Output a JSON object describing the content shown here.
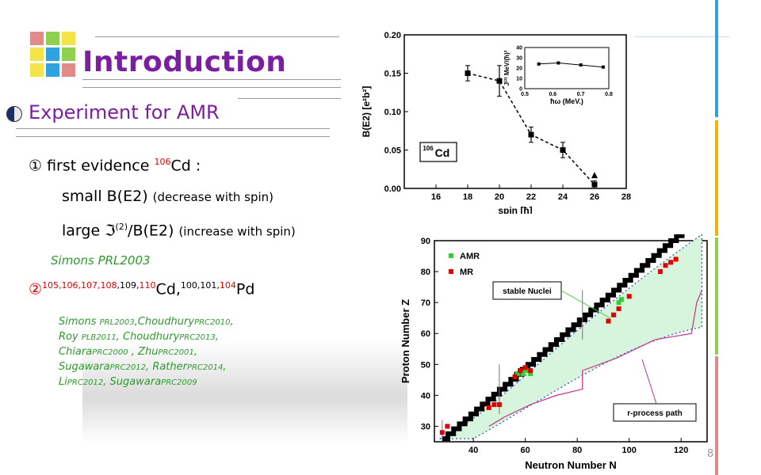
{
  "slide": {
    "title": "Introduction",
    "subtitle": "Experiment for AMR",
    "page_number": "8",
    "item1": {
      "marker": "①",
      "text_a": "first evidence",
      "mass": "106",
      "element": "Cd",
      "colon": " :"
    },
    "item1_line2": {
      "main": "small B(E2) ",
      "paren": "(decrease with spin)"
    },
    "item1_line3": {
      "a": "large ",
      "symbol": "ℑ",
      "sup": "(2)",
      "b": "/B(E2) ",
      "paren": "(increase with spin)"
    },
    "ref1": "Simons PRL2003",
    "item2": {
      "marker": "②",
      "cd_masses": [
        "105",
        ",",
        "106",
        ",",
        "107",
        ",",
        "108",
        ",",
        "109",
        ",",
        "110"
      ],
      "cd": "Cd,",
      "pd_masses": [
        "100",
        ",",
        "101",
        ",",
        "104"
      ],
      "pd": "Pd"
    },
    "refs": [
      {
        "name": "Simons ",
        "ref": "PRL2003",
        "sep": ",",
        "name2": "Choudhury",
        "ref2": "PRC2010",
        "end": ","
      },
      {
        "name": "Roy ",
        "ref": "PLB2011",
        "sep": ", ",
        "name2": "Choudhury",
        "ref2": "PRC2013",
        "end": ","
      },
      {
        "name": "Chiara",
        "ref": "PRC2000",
        "sep": " , ",
        "name2": "Zhu",
        "ref2": "PRC2001",
        "end": ","
      },
      {
        "name": "Sugawara",
        "ref": "PRC2012",
        "sep": ", ",
        "name2": "Rather",
        "ref2": "PRC2014",
        "end": ","
      },
      {
        "name": "Li",
        "ref": "PRC2012",
        "sep": ", ",
        "name2": "Sugawara",
        "ref2": "PRC2009",
        "end": ""
      }
    ]
  },
  "colors": {
    "title": "#7a1fa0",
    "ref_green": "#2e9a2e",
    "highlight_red": "#e00000",
    "logo": [
      "#e08a8a",
      "#8fd14f",
      "#f4e44a",
      "#f4e44a",
      "#2ea3e0",
      "#8fd14f",
      "#f4e44a",
      "#2ea3e0",
      "#e08a8a"
    ],
    "side_bars": [
      "#2ea3e0",
      "#f0b400",
      "#8fd14f",
      "#e08a8a"
    ]
  },
  "chart_data": [
    {
      "type": "line",
      "title": "",
      "xlabel": "spin [ħ]",
      "ylabel": "B(E2) [e²b²]",
      "xlim": [
        14,
        28
      ],
      "ylim": [
        0.0,
        0.2
      ],
      "x_ticks": [
        16,
        18,
        20,
        22,
        24,
        26,
        28
      ],
      "y_ticks": [
        0.0,
        0.05,
        0.1,
        0.15,
        0.2
      ],
      "x_tick_labels": [
        "16",
        "18",
        "20",
        "22",
        "24",
        "26",
        "28"
      ],
      "y_tick_labels": [
        "0.00",
        "0.05",
        "0.10",
        "0.15",
        "0.20"
      ],
      "label_box": {
        "mass": "106",
        "element": "Cd"
      },
      "series": [
        {
          "x": [
            18,
            20,
            22,
            24,
            26
          ],
          "y": [
            0.15,
            0.14,
            0.07,
            0.05,
            0.005
          ],
          "yerr": [
            0.01,
            0.02,
            0.01,
            0.01,
            0.005
          ],
          "style": "dashed"
        }
      ],
      "inset": {
        "type": "line",
        "xlabel": "ħω (MeV.)",
        "ylabel": "J⁽²⁾ MeV/(ħ)²",
        "xlim": [
          0.5,
          0.8
        ],
        "ylim": [
          0,
          40
        ],
        "x_tick_labels": [
          "0.5",
          "0.6",
          "0.7",
          "0.8"
        ],
        "y_tick_labels": [
          "0",
          "10",
          "20",
          "30",
          "40"
        ],
        "x": [
          0.55,
          0.62,
          0.7,
          0.78
        ],
        "y": [
          24,
          25,
          23,
          21
        ]
      }
    },
    {
      "type": "scatter",
      "title": "",
      "xlabel": "Neutron Number N",
      "ylabel": "Proton Number Z",
      "xlim": [
        25,
        130
      ],
      "ylim": [
        25,
        90
      ],
      "x_tick_labels": [
        "40",
        "60",
        "80",
        "100",
        "120"
      ],
      "y_tick_labels": [
        "30",
        "40",
        "50",
        "60",
        "70",
        "80",
        "90"
      ],
      "legend": [
        "AMR",
        "MR"
      ],
      "legend_position": "top-left",
      "annotations": [
        "stable Nuclei",
        "r-process path"
      ],
      "series": [
        {
          "name": "AMR",
          "points": [
            [
              57,
              47
            ],
            [
              58,
              48
            ],
            [
              59,
              47
            ],
            [
              60,
              48
            ],
            [
              61,
              48
            ],
            [
              62,
              47
            ],
            [
              96,
              70
            ],
            [
              97,
              71
            ]
          ]
        },
        {
          "name": "MR",
          "points": [
            [
              28,
              28
            ],
            [
              30,
              30
            ],
            [
              46,
              36
            ],
            [
              48,
              37
            ],
            [
              50,
              37
            ],
            [
              56,
              46
            ],
            [
              58,
              48
            ],
            [
              60,
              49
            ],
            [
              62,
              48
            ],
            [
              92,
              64
            ],
            [
              94,
              66
            ],
            [
              96,
              68
            ],
            [
              100,
              72
            ],
            [
              112,
              80
            ],
            [
              114,
              82
            ],
            [
              116,
              83
            ],
            [
              118,
              84
            ]
          ]
        }
      ]
    }
  ]
}
